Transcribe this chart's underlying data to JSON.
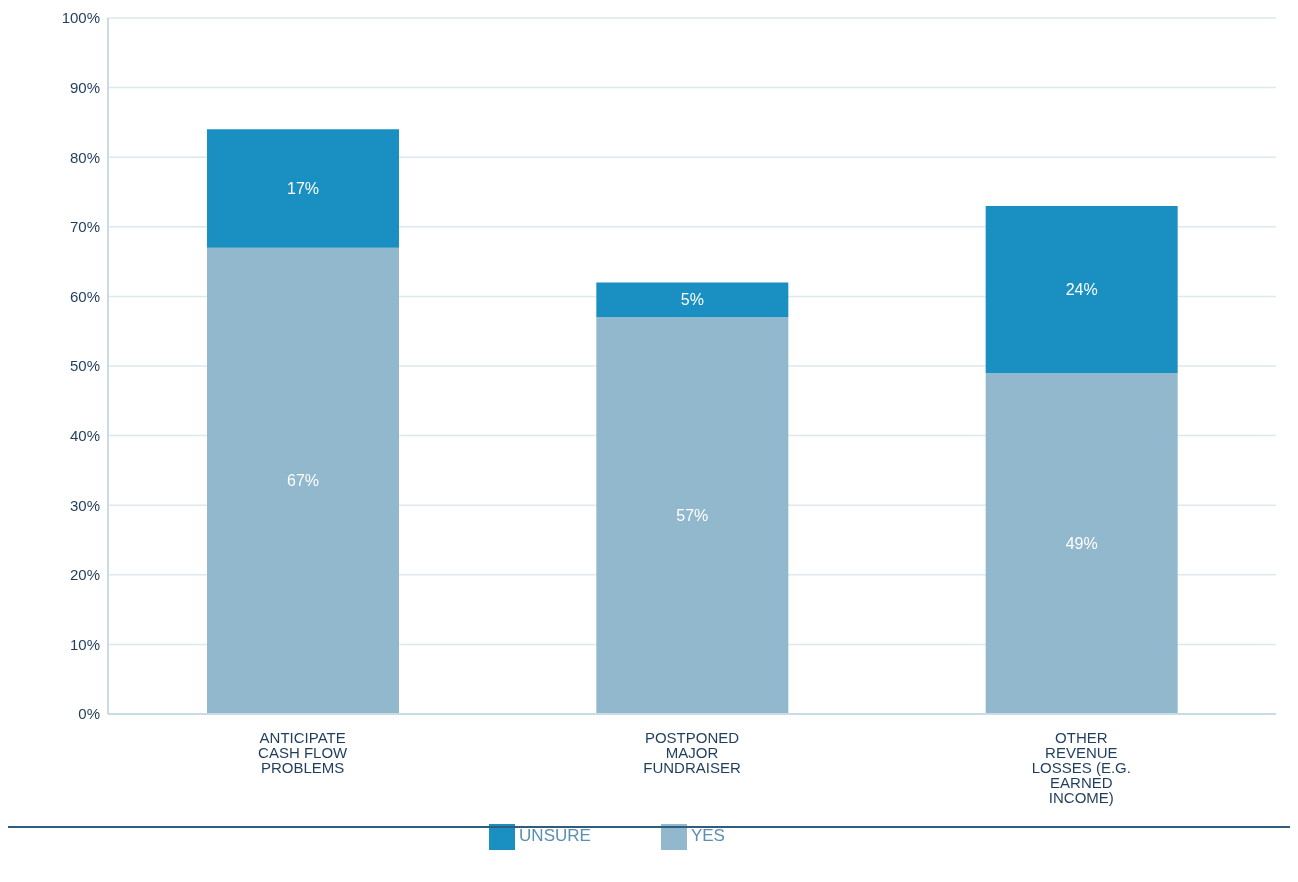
{
  "chart_data": {
    "type": "bar",
    "stacked": true,
    "categories": [
      "ANTICIPATE CASH FLOW PROBLEMS",
      "POSTPONED MAJOR FUNDRAISER",
      "OTHER REVENUE LOSSES (E.G. EARNED INCOME)"
    ],
    "series": [
      {
        "name": "YES",
        "color": "#91b8cc",
        "values": [
          67,
          57,
          49
        ],
        "value_labels": [
          "67%",
          "57%",
          "49%"
        ]
      },
      {
        "name": "UNSURE",
        "color": "#1a8fc1",
        "values": [
          17,
          5,
          24
        ],
        "value_labels": [
          "17%",
          "5%",
          "24%"
        ]
      }
    ],
    "ylim": [
      0,
      100
    ],
    "yticks": [
      {
        "value": 0,
        "label": "0%"
      },
      {
        "value": 10,
        "label": "10%"
      },
      {
        "value": 20,
        "label": "20%"
      },
      {
        "value": 30,
        "label": "30%"
      },
      {
        "value": 40,
        "label": "40%"
      },
      {
        "value": 50,
        "label": "50%"
      },
      {
        "value": 60,
        "label": "60%"
      },
      {
        "value": 70,
        "label": "70%"
      },
      {
        "value": 80,
        "label": "80%"
      },
      {
        "value": 90,
        "label": "90%"
      },
      {
        "value": 100,
        "label": "100%"
      }
    ],
    "grid": "y",
    "legend": "bottom"
  }
}
